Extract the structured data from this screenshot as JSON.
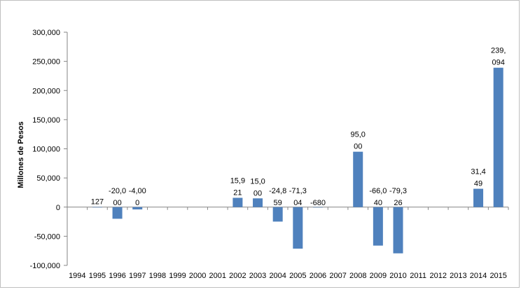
{
  "chart_data": {
    "type": "bar",
    "title": "",
    "xlabel": "",
    "ylabel": "Millones de Pesos",
    "ylim": [
      -100000,
      300000
    ],
    "yticks": [
      300000,
      250000,
      200000,
      150000,
      100000,
      50000,
      0,
      -50000,
      -100000
    ],
    "ytick_labels": [
      "300,000",
      "250,000",
      "200,000",
      "150,000",
      "100,000",
      "50,000",
      "0",
      "-50,000",
      "-100,000"
    ],
    "grid": false,
    "legend": "none",
    "bar_color": "#4f81bd",
    "categories": [
      "1994",
      "1995",
      "1996",
      "1997",
      "1998",
      "1999",
      "2000",
      "2001",
      "2002",
      "2003",
      "2004",
      "2005",
      "2006",
      "2007",
      "2008",
      "2009",
      "2010",
      "2011",
      "2012",
      "2013",
      "2014",
      "2015"
    ],
    "values": [
      null,
      127,
      -20000,
      -4000,
      null,
      null,
      null,
      null,
      15921,
      15000,
      -24859,
      -71304,
      -680,
      null,
      95000,
      -66040,
      -79326,
      null,
      null,
      null,
      31449,
      239094
    ],
    "data_labels": [
      [],
      [
        "127"
      ],
      [
        "-20,0",
        "00"
      ],
      [
        "-4,00",
        "0"
      ],
      [],
      [],
      [],
      [],
      [
        "15,9",
        "21"
      ],
      [
        "15,0",
        "00"
      ],
      [
        "-24,8",
        "59"
      ],
      [
        "-71,3",
        "04"
      ],
      [
        "-680"
      ],
      [],
      [
        "95,0",
        "00"
      ],
      [
        "-66,0",
        "40"
      ],
      [
        "-79,3",
        "26"
      ],
      [],
      [],
      [],
      [
        "31,4",
        "49"
      ],
      [
        "239,",
        "094"
      ]
    ]
  }
}
